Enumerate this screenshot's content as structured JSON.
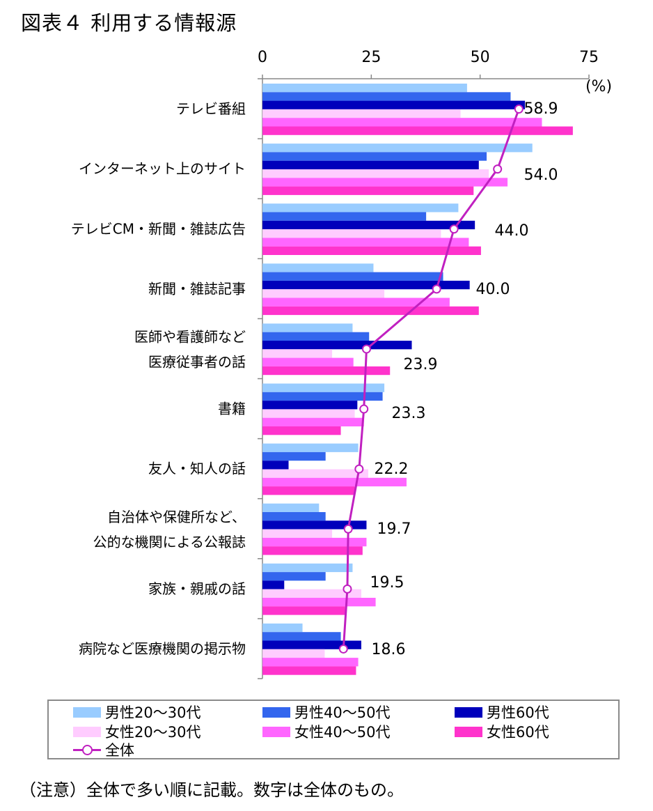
{
  "title": "図表４ 利用する情報源",
  "footnote": "（注意）全体で多い順に記載。数字は全体のもの。",
  "chart_data": {
    "type": "bar",
    "orientation": "horizontal",
    "unit": "(%)",
    "xlim": [
      0,
      75
    ],
    "xticks": [
      0,
      25,
      50,
      75
    ],
    "categories": [
      [
        "テレビ番組"
      ],
      [
        "インターネット上のサイト"
      ],
      [
        "テレビCM・新聞・雑誌広告"
      ],
      [
        "新聞・雑誌記事"
      ],
      [
        "医師や看護師など",
        "医療従事者の話"
      ],
      [
        "書籍"
      ],
      [
        "友人・知人の話"
      ],
      [
        "自治体や保健所など、",
        "公的な機関による公報誌"
      ],
      [
        "家族・親戚の話"
      ],
      [
        "病院など医療機関の掲示物"
      ]
    ],
    "series": [
      {
        "name": "男性20～30代",
        "color": "#99ccff",
        "values": [
          47,
          62,
          45,
          25.5,
          20.7,
          28,
          22,
          13,
          20.7,
          9.2
        ]
      },
      {
        "name": "男性40～50代",
        "color": "#3366ee",
        "values": [
          57,
          51.5,
          37.6,
          41.5,
          24.5,
          27.6,
          14.5,
          14.5,
          14.5,
          18
        ]
      },
      {
        "name": "男性60代",
        "color": "#0000bb",
        "values": [
          60.3,
          49.7,
          48.8,
          47.6,
          34.3,
          21.8,
          6,
          23.9,
          5,
          22.7
        ]
      },
      {
        "name": "女性20～30代",
        "color": "#ffccff",
        "values": [
          45.5,
          52,
          41,
          28,
          16,
          21.2,
          24.3,
          16,
          22.7,
          14.3
        ]
      },
      {
        "name": "女性40～50代",
        "color": "#ff66ff",
        "values": [
          64.2,
          56.3,
          47.4,
          43,
          20.9,
          23.3,
          33.1,
          23.9,
          26,
          22
        ]
      },
      {
        "name": "女性60代",
        "color": "#ff33cc",
        "values": [
          71.3,
          48.5,
          50.2,
          49.7,
          29.3,
          18,
          21.2,
          23,
          19,
          21.5
        ]
      }
    ],
    "overall": {
      "name": "全体",
      "color": "#c020c0",
      "values": [
        58.9,
        54.0,
        44.0,
        40.0,
        23.9,
        23.3,
        22.2,
        19.7,
        19.5,
        18.6
      ],
      "labels": [
        "58.9",
        "54.0",
        "44.0",
        "40.0",
        "23.9",
        "23.3",
        "22.2",
        "19.7",
        "19.5",
        "18.6"
      ]
    },
    "legend_position": "bottom"
  }
}
